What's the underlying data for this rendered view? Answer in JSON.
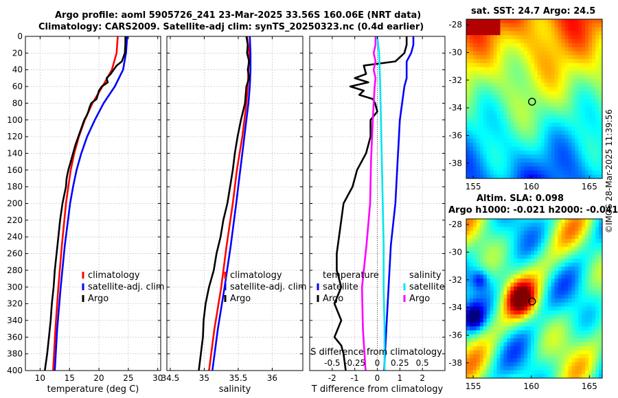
{
  "titles": {
    "main1": "Argo profile: aoml 5905726_241 23-Mar-2025 33.56S 160.06E (NRT data)",
    "main2": "Climatology: CARS2009. Satellite-adj clim: synTS_20250323.nc (0.4d earlier)",
    "sst": "sat. SST: 24.7 Argo: 24.5",
    "sla1": "Altim. SLA: 0.098",
    "sla2": "Argo h1000: -0.021 h2000: -0.041",
    "stamp": "©IMOS 28-Mar-2025 11:39:56"
  },
  "colors": {
    "clim": "#ff0000",
    "sat": "#0000ff",
    "argo": "#000000",
    "sat_s": "#00e5ee",
    "argo_s": "#ff00ff"
  },
  "chart_data": [
    {
      "type": "line",
      "panel": "temperature",
      "xlabel": "temperature (deg C)",
      "ylabel": "",
      "xlim": [
        7.5,
        30.5
      ],
      "ylim": [
        400,
        0
      ],
      "xticks": [
        10,
        15,
        20,
        25,
        30
      ],
      "yticks": [
        0,
        20,
        40,
        60,
        80,
        100,
        120,
        140,
        160,
        180,
        200,
        220,
        240,
        260,
        280,
        300,
        320,
        340,
        360,
        380,
        400
      ],
      "legend": [
        "climatology",
        "satellite-adj. clim",
        "Argo"
      ],
      "series": [
        {
          "name": "climatology",
          "color": "clim",
          "depth": [
            0,
            20,
            40,
            60,
            80,
            100,
            120,
            140,
            160,
            180,
            200,
            250,
            300,
            350,
            400
          ],
          "values": [
            23.2,
            23.0,
            22.2,
            20.6,
            18.9,
            17.6,
            16.6,
            15.8,
            15.2,
            14.8,
            14.4,
            13.7,
            13.1,
            12.6,
            12.2
          ]
        },
        {
          "name": "satellite-adj. clim",
          "color": "sat",
          "depth": [
            0,
            20,
            40,
            60,
            80,
            100,
            120,
            140,
            160,
            180,
            200,
            250,
            300,
            350,
            400
          ],
          "values": [
            24.8,
            24.6,
            24.1,
            22.7,
            20.8,
            19.3,
            18.0,
            17.0,
            16.2,
            15.6,
            15.1,
            14.2,
            13.5,
            12.9,
            12.5
          ]
        },
        {
          "name": "Argo",
          "color": "argo",
          "depth": [
            0,
            10,
            20,
            30,
            35,
            45,
            50,
            55,
            60,
            65,
            70,
            75,
            80,
            85,
            90,
            95,
            100,
            110,
            120,
            130,
            140,
            150,
            160,
            170,
            180,
            190,
            200,
            220,
            240,
            260,
            280,
            300,
            320,
            340,
            360,
            380,
            400
          ],
          "values": [
            24.5,
            24.5,
            24.4,
            23.9,
            23.0,
            22.0,
            21.3,
            21.5,
            20.5,
            20.0,
            19.8,
            19.6,
            18.7,
            18.4,
            18.2,
            17.9,
            17.5,
            17.0,
            16.5,
            16.0,
            15.6,
            15.2,
            14.8,
            14.5,
            14.4,
            14.1,
            13.8,
            13.4,
            13.1,
            12.8,
            12.5,
            12.3,
            12.0,
            11.8,
            11.5,
            11.2,
            10.8
          ]
        }
      ]
    },
    {
      "type": "line",
      "panel": "salinity",
      "xlabel": "salinity",
      "xlim": [
        34.45,
        36.45
      ],
      "ylim": [
        400,
        0
      ],
      "xticks": [
        34.5,
        35,
        35.5,
        36
      ],
      "legend": [
        "climatology",
        "satellite-adj. clim",
        "Argo"
      ],
      "series": [
        {
          "name": "climatology",
          "color": "clim",
          "depth": [
            0,
            20,
            40,
            60,
            80,
            100,
            120,
            140,
            160,
            180,
            200,
            250,
            300,
            350,
            400
          ],
          "values": [
            35.63,
            35.66,
            35.65,
            35.64,
            35.62,
            35.59,
            35.56,
            35.52,
            35.48,
            35.45,
            35.42,
            35.33,
            35.25,
            35.15,
            35.07
          ]
        },
        {
          "name": "satellite-adj. clim",
          "color": "sat",
          "depth": [
            0,
            20,
            40,
            60,
            80,
            100,
            120,
            140,
            160,
            180,
            200,
            250,
            300,
            350,
            400
          ],
          "values": [
            35.67,
            35.68,
            35.68,
            35.67,
            35.65,
            35.62,
            35.59,
            35.56,
            35.53,
            35.5,
            35.47,
            35.39,
            35.3,
            35.2,
            35.12
          ]
        },
        {
          "name": "Argo",
          "color": "argo",
          "depth": [
            0,
            10,
            20,
            30,
            40,
            50,
            60,
            80,
            100,
            120,
            140,
            160,
            180,
            200,
            220,
            240,
            260,
            280,
            300,
            320,
            340,
            360,
            380,
            400
          ],
          "values": [
            35.62,
            35.64,
            35.63,
            35.66,
            35.64,
            35.66,
            35.62,
            35.6,
            35.54,
            35.49,
            35.45,
            35.42,
            35.38,
            35.34,
            35.28,
            35.24,
            35.18,
            35.14,
            35.07,
            35.02,
            34.99,
            34.98,
            34.95,
            34.92
          ]
        }
      ]
    },
    {
      "type": "line",
      "panel": "difference",
      "xlabel": "T difference from climatology",
      "xlabel2": "S difference from climatology",
      "xlim": [
        -3,
        3
      ],
      "ylim": [
        400,
        0
      ],
      "xticks": [
        -2,
        -1,
        0,
        1,
        2
      ],
      "xticks2_labels": [
        "-0.5",
        "-0.25",
        "0",
        "0.25",
        "0.5"
      ],
      "legend_titles": [
        "temperature",
        "salinity"
      ],
      "legend_t": [
        "satellite",
        "Argo"
      ],
      "legend_s": [
        "satellite",
        "Argo"
      ],
      "series": [
        {
          "name": "T satellite",
          "color": "sat",
          "depth": [
            0,
            10,
            20,
            30,
            40,
            50,
            60,
            80,
            100,
            150,
            200,
            250,
            300,
            350,
            400
          ],
          "values": [
            1.6,
            1.6,
            1.5,
            1.3,
            1.3,
            1.3,
            1.2,
            1.1,
            1.0,
            0.9,
            0.8,
            0.6,
            0.5,
            0.4,
            0.3
          ]
        },
        {
          "name": "T Argo",
          "color": "argo",
          "depth": [
            0,
            10,
            20,
            30,
            35,
            45,
            50,
            55,
            60,
            65,
            70,
            75,
            80,
            90,
            100,
            120,
            140,
            160,
            180,
            200,
            220,
            240,
            260,
            280,
            300,
            320,
            340,
            360,
            370,
            380,
            400
          ],
          "values": [
            1.3,
            1.3,
            1.2,
            0.8,
            -0.6,
            -0.5,
            -1.0,
            -0.4,
            -1.2,
            -0.6,
            -0.8,
            -0.2,
            -0.1,
            0.0,
            -0.3,
            -0.3,
            -0.5,
            -0.9,
            -1.1,
            -1.5,
            -1.6,
            -1.7,
            -1.8,
            -1.8,
            -1.6,
            -1.9,
            -1.6,
            -1.9,
            -1.6,
            -1.5,
            -1.4
          ]
        },
        {
          "name": "S satellite",
          "color": "sat_s",
          "depth": [
            0,
            20,
            50,
            100,
            150,
            200,
            250,
            300,
            350,
            400
          ],
          "values": [
            0.0,
            0.02,
            0.03,
            0.04,
            0.05,
            0.06,
            0.07,
            0.07,
            0.08,
            0.08
          ]
        },
        {
          "name": "S Argo",
          "color": "argo_s",
          "depth": [
            0,
            10,
            20,
            30,
            40,
            50,
            60,
            80,
            100,
            150,
            200,
            250,
            300,
            350,
            400
          ],
          "values": [
            -0.02,
            -0.02,
            -0.04,
            -0.02,
            -0.04,
            -0.02,
            -0.03,
            -0.04,
            -0.05,
            -0.07,
            -0.08,
            -0.12,
            -0.17,
            -0.16,
            -0.13
          ]
        }
      ]
    },
    {
      "type": "heatmap",
      "panel": "sat-sst-map",
      "title": "sat. SST: 24.7 Argo: 24.5",
      "xticks": [
        155,
        160,
        165
      ],
      "yticks": [
        -28,
        -30,
        -32,
        -34,
        -36,
        -38
      ],
      "xlim": [
        154.4,
        166.1
      ],
      "ylim": [
        -39.1,
        -27.6
      ],
      "marker": {
        "lon": 160.06,
        "lat": -33.56
      }
    },
    {
      "type": "heatmap",
      "panel": "altim-sla-map",
      "title": "Altim. SLA: 0.098",
      "xticks": [
        155,
        160,
        165
      ],
      "yticks": [
        -28,
        -30,
        -32,
        -34,
        -36,
        -38
      ],
      "xlim": [
        154.4,
        166.1
      ],
      "ylim": [
        -39.1,
        -27.6
      ],
      "marker": {
        "lon": 160.06,
        "lat": -33.56
      }
    }
  ]
}
